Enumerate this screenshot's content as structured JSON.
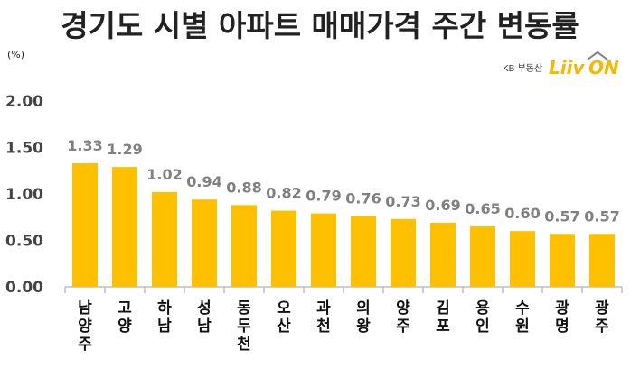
{
  "colors": {
    "bar": "#FFC000",
    "axis": "#BFBFBF",
    "logo_yellow": "#F5B800",
    "logo_gray": "#7F7F7F"
  },
  "brand": {
    "prefix": "KB 부동산",
    "liiv": "Liiv",
    "on": "ON"
  },
  "chart_data": {
    "type": "bar",
    "title": "경기도 시별 아파트 매매가격 주간 변동률",
    "unit": "(%)",
    "categories": [
      "남양주",
      "고양",
      "하남",
      "성남",
      "동두천",
      "오산",
      "과천",
      "의왕",
      "양주",
      "김포",
      "용인",
      "수원",
      "광명",
      "광주"
    ],
    "values": [
      1.33,
      1.29,
      1.02,
      0.94,
      0.88,
      0.82,
      0.79,
      0.76,
      0.73,
      0.69,
      0.65,
      0.6,
      0.57,
      0.57
    ],
    "value_labels": [
      "1.33",
      "1.29",
      "1.02",
      "0.94",
      "0.88",
      "0.82",
      "0.79",
      "0.76",
      "0.73",
      "0.69",
      "0.65",
      "0.60",
      "0.57",
      "0.57"
    ],
    "yticks": [
      "0.00",
      "0.50",
      "1.00",
      "1.50",
      "2.00"
    ],
    "ytick_values": [
      0,
      0.5,
      1,
      1.5,
      2
    ],
    "ylim": [
      0,
      2
    ],
    "xlabel": "",
    "ylabel": "",
    "grid": false,
    "legend": "none"
  }
}
